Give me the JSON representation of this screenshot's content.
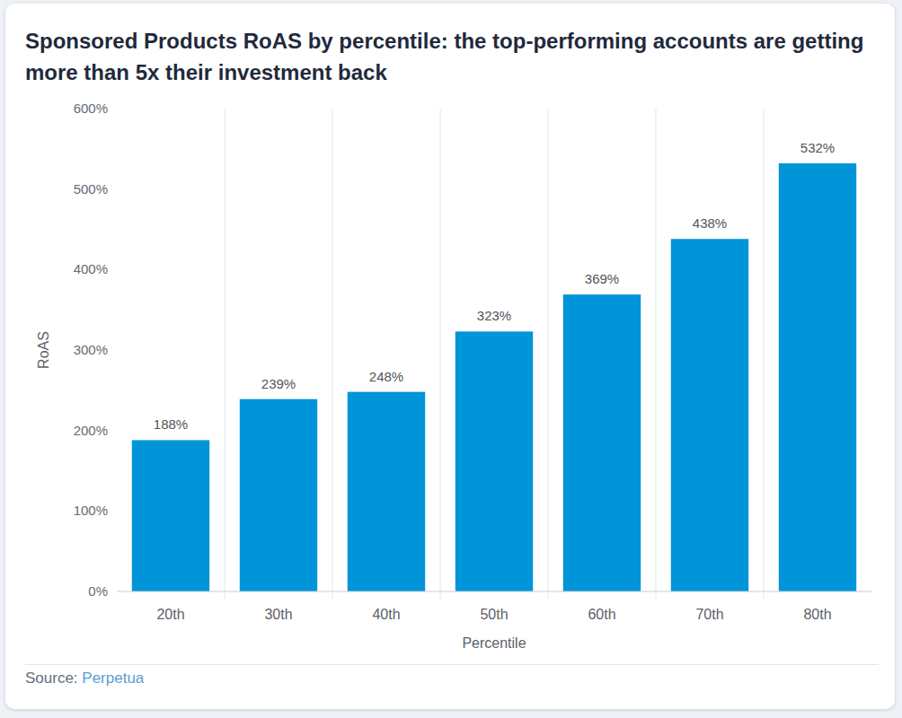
{
  "chart_data": {
    "type": "bar",
    "title": "Sponsored Products RoAS by percentile: the top-performing accounts are getting more than 5x their investment back",
    "x_label": "Percentile",
    "y_label": "RoAS",
    "categories": [
      "20th",
      "30th",
      "40th",
      "50th",
      "60th",
      "70th",
      "80th"
    ],
    "values": [
      188,
      239,
      248,
      323,
      369,
      438,
      532
    ],
    "value_labels": [
      "188%",
      "239%",
      "248%",
      "323%",
      "369%",
      "438%",
      "532%"
    ],
    "color": "#0094d8",
    "ylim": [
      0,
      600
    ],
    "yticks": [
      {
        "value": 0,
        "label": "0%"
      },
      {
        "value": 100,
        "label": "100%"
      },
      {
        "value": 200,
        "label": "200%"
      },
      {
        "value": 300,
        "label": "300%"
      },
      {
        "value": 400,
        "label": "400%"
      },
      {
        "value": 500,
        "label": "500%"
      },
      {
        "value": 600,
        "label": "600%"
      }
    ],
    "grid": "x",
    "data_labels": true,
    "source_label": "Source:",
    "source": "Perpetua"
  }
}
